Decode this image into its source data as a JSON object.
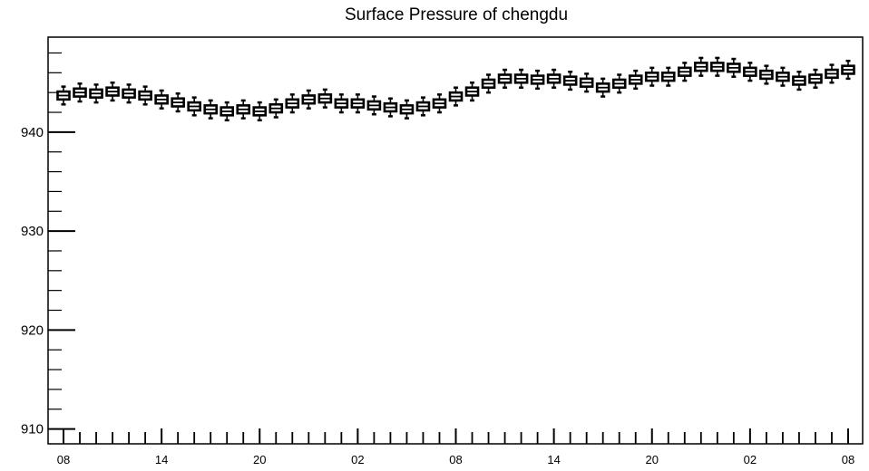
{
  "chart_data": {
    "type": "boxplot",
    "title": "Surface Pressure of chengdu",
    "xlabel": "",
    "ylabel": "",
    "ylim": [
      908.5,
      949.6
    ],
    "y_ticks": [
      910,
      920,
      930,
      940
    ],
    "x_tick_labels": [
      "08",
      "14",
      "20",
      "02",
      "08",
      "14",
      "20",
      "02",
      "08"
    ],
    "hours_per_step": 1,
    "total_steps": 48,
    "grid": false,
    "legend": "none",
    "box_fill": "#ffffff",
    "stroke_color": "#000000",
    "medians": [
      943.7,
      944.0,
      943.9,
      944.1,
      943.9,
      943.7,
      943.3,
      943.0,
      942.6,
      942.3,
      942.1,
      942.3,
      942.1,
      942.4,
      942.9,
      943.3,
      943.4,
      942.9,
      942.9,
      942.7,
      942.5,
      942.3,
      942.6,
      942.9,
      943.6,
      944.1,
      944.9,
      945.4,
      945.4,
      945.3,
      945.4,
      945.2,
      945.0,
      944.5,
      944.9,
      945.3,
      945.6,
      945.6,
      946.1,
      946.6,
      946.6,
      946.5,
      946.1,
      945.8,
      945.6,
      945.2,
      945.4,
      945.9,
      946.3
    ],
    "box_half_height": 0.4,
    "whisker_half_range": 0.9
  }
}
